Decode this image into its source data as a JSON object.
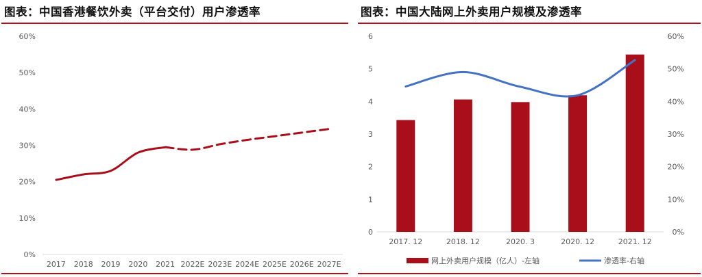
{
  "charts": {
    "left": {
      "title": "图表：中国香港餐饮外卖（平台交付）用户渗透率"
    },
    "right": {
      "title": "图表：中国大陆网上外卖用户规模及渗透率"
    }
  },
  "colors": {
    "accent": "#b0121b",
    "bar": "#a80f1a",
    "line_blue": "#4472c4",
    "grid": "#d9d9d9",
    "axis_text": "#595959"
  },
  "chart_data": [
    {
      "type": "line",
      "title": "图表：中国香港餐饮外卖（平台交付）用户渗透率",
      "categories": [
        "2017",
        "2018",
        "2019",
        "2020",
        "2021",
        "2022E",
        "2023E",
        "2024E",
        "2025E",
        "2026E",
        "2027E"
      ],
      "y_ticks": [
        "0%",
        "10%",
        "20%",
        "30%",
        "40%",
        "50%",
        "60%"
      ],
      "ylim": [
        0,
        60
      ],
      "grid": false,
      "series": [
        {
          "style": "solid",
          "x": [
            "2017",
            "2018",
            "2019",
            "2020",
            "2021"
          ],
          "values": [
            20.5,
            22.0,
            23.0,
            28.0,
            29.5
          ]
        },
        {
          "style": "dashed",
          "x": [
            "2021",
            "2022E",
            "2023E",
            "2024E",
            "2025E",
            "2026E",
            "2027E"
          ],
          "values": [
            29.5,
            28.8,
            30.3,
            31.5,
            32.5,
            33.5,
            34.5
          ]
        }
      ]
    },
    {
      "type": "bar",
      "title": "图表：中国大陆网上外卖用户规模及渗透率",
      "categories": [
        "2017. 12",
        "2018. 12",
        "2020. 3",
        "2020. 12",
        "2021. 12"
      ],
      "y_ticks_left": [
        "0",
        "1",
        "2",
        "3",
        "4",
        "5",
        "6"
      ],
      "y_ticks_right": [
        "0%",
        "10%",
        "20%",
        "30%",
        "40%",
        "50%",
        "60%"
      ],
      "ylim_left": [
        0,
        6
      ],
      "ylim_right": [
        0,
        60
      ],
      "grid": false,
      "legend_position": "bottom",
      "series": [
        {
          "name": "网上外卖用户规模（亿人）-左轴",
          "type": "bar",
          "axis": "left",
          "values": [
            3.43,
            4.06,
            3.98,
            4.19,
            5.44
          ]
        },
        {
          "name": "渗透率-右轴",
          "type": "line",
          "axis": "right",
          "values": [
            44.6,
            49.0,
            44.5,
            41.9,
            52.7
          ]
        }
      ]
    }
  ]
}
